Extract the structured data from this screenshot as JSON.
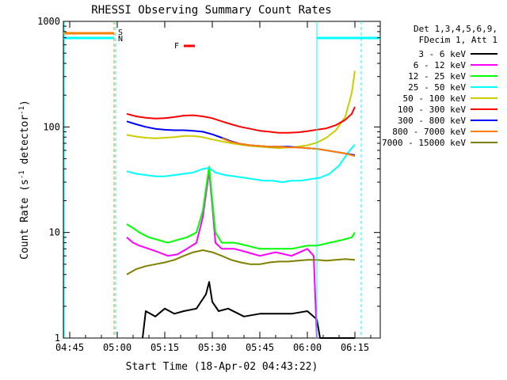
{
  "chart_data": {
    "type": "line",
    "title": "RHESSI Observing Summary Count Rates",
    "xlabel": "Start Time (18-Apr-02 04:43:22)",
    "ylabel_parts": [
      "Count Rate (s",
      "-1",
      " detector",
      "-1",
      ")"
    ],
    "y_scale": "log",
    "ylim": [
      1,
      1000
    ],
    "y_ticks": [
      {
        "value": 1,
        "label": "1"
      },
      {
        "value": 10,
        "label": "10"
      },
      {
        "value": 100,
        "label": "100"
      },
      {
        "value": 1000,
        "label": "1000"
      }
    ],
    "xlim_min": [
      -2,
      98
    ],
    "x_ticks": [
      {
        "value": 0,
        "label": "04:45"
      },
      {
        "value": 15,
        "label": "05:00"
      },
      {
        "value": 30,
        "label": "05:15"
      },
      {
        "value": 45,
        "label": "05:30"
      },
      {
        "value": 60,
        "label": "05:45"
      },
      {
        "value": 75,
        "label": "06:00"
      },
      {
        "value": 90,
        "label": "06:15"
      }
    ],
    "legend_header": [
      "Det 1,3,4,5,6,9,",
      "FDecim 1, Att 1"
    ],
    "legend_placement": "right",
    "flag_labels": {
      "s": "S",
      "n": "N",
      "f": "F"
    },
    "series": [
      {
        "name": "3 - 6 keV",
        "color": "#000000",
        "values": [
          [
            23,
            1
          ],
          [
            24,
            1.8
          ],
          [
            27,
            1.6
          ],
          [
            30,
            1.9
          ],
          [
            33,
            1.7
          ],
          [
            36,
            1.8
          ],
          [
            40,
            1.9
          ],
          [
            43,
            2.6
          ],
          [
            44,
            3.4
          ],
          [
            45,
            2.2
          ],
          [
            47,
            1.8
          ],
          [
            50,
            1.9
          ],
          [
            55,
            1.6
          ],
          [
            60,
            1.7
          ],
          [
            70,
            1.7
          ],
          [
            75,
            1.8
          ],
          [
            78,
            1.5
          ],
          [
            79,
            1
          ],
          [
            85,
            1
          ],
          [
            90,
            1
          ]
        ]
      },
      {
        "name": "6 - 12 keV",
        "color": "#ff00ff",
        "values": [
          [
            18,
            9
          ],
          [
            20,
            8
          ],
          [
            22,
            7.5
          ],
          [
            25,
            7
          ],
          [
            28,
            6.5
          ],
          [
            31,
            6
          ],
          [
            34,
            6.2
          ],
          [
            37,
            7
          ],
          [
            40,
            8
          ],
          [
            42,
            14
          ],
          [
            44,
            38
          ],
          [
            45,
            18
          ],
          [
            46,
            8
          ],
          [
            48,
            7
          ],
          [
            52,
            7
          ],
          [
            56,
            6.5
          ],
          [
            60,
            6
          ],
          [
            65,
            6.5
          ],
          [
            70,
            6
          ],
          [
            75,
            7
          ],
          [
            77,
            6
          ],
          [
            78,
            1
          ]
        ]
      },
      {
        "name": "12 - 25 keV",
        "color": "#00ff00",
        "values": [
          [
            18,
            12
          ],
          [
            20,
            11
          ],
          [
            22,
            10
          ],
          [
            25,
            9
          ],
          [
            28,
            8.5
          ],
          [
            31,
            8
          ],
          [
            34,
            8.5
          ],
          [
            37,
            9
          ],
          [
            40,
            10
          ],
          [
            42,
            16
          ],
          [
            44,
            42
          ],
          [
            45,
            20
          ],
          [
            46,
            10
          ],
          [
            48,
            8
          ],
          [
            52,
            8
          ],
          [
            56,
            7.5
          ],
          [
            60,
            7
          ],
          [
            65,
            7
          ],
          [
            70,
            7
          ],
          [
            75,
            7.5
          ],
          [
            78,
            7.5
          ],
          [
            82,
            8
          ],
          [
            86,
            8.5
          ],
          [
            89,
            9
          ],
          [
            90,
            10
          ]
        ]
      },
      {
        "name": "25 - 50 keV",
        "color": "#00ffff",
        "values": [
          [
            18,
            38
          ],
          [
            21,
            36
          ],
          [
            24,
            35
          ],
          [
            27,
            34
          ],
          [
            30,
            34
          ],
          [
            33,
            35
          ],
          [
            36,
            36
          ],
          [
            39,
            37
          ],
          [
            42,
            40
          ],
          [
            44,
            41
          ],
          [
            46,
            37
          ],
          [
            49,
            35
          ],
          [
            52,
            34
          ],
          [
            55,
            33
          ],
          [
            58,
            32
          ],
          [
            61,
            31
          ],
          [
            64,
            31
          ],
          [
            67,
            30
          ],
          [
            70,
            31
          ],
          [
            73,
            31
          ],
          [
            76,
            32
          ],
          [
            79,
            33
          ],
          [
            82,
            36
          ],
          [
            85,
            43
          ],
          [
            88,
            58
          ],
          [
            90,
            68
          ]
        ]
      },
      {
        "name": "50 - 100 keV",
        "color": "#cccc00",
        "values": [
          [
            18,
            84
          ],
          [
            21,
            81
          ],
          [
            24,
            79
          ],
          [
            27,
            78
          ],
          [
            30,
            79
          ],
          [
            33,
            80
          ],
          [
            36,
            82
          ],
          [
            39,
            82
          ],
          [
            42,
            80
          ],
          [
            45,
            76
          ],
          [
            48,
            73
          ],
          [
            51,
            70
          ],
          [
            54,
            68
          ],
          [
            57,
            66
          ],
          [
            60,
            65
          ],
          [
            63,
            64
          ],
          [
            66,
            63
          ],
          [
            69,
            64
          ],
          [
            72,
            65
          ],
          [
            75,
            67
          ],
          [
            78,
            71
          ],
          [
            81,
            79
          ],
          [
            84,
            93
          ],
          [
            87,
            125
          ],
          [
            89,
            210
          ],
          [
            90,
            340
          ]
        ]
      },
      {
        "name": "100 - 300 keV",
        "color": "#ff0000",
        "values": [
          [
            18,
            133
          ],
          [
            21,
            126
          ],
          [
            24,
            122
          ],
          [
            27,
            120
          ],
          [
            30,
            121
          ],
          [
            33,
            124
          ],
          [
            36,
            128
          ],
          [
            39,
            129
          ],
          [
            42,
            126
          ],
          [
            45,
            121
          ],
          [
            48,
            113
          ],
          [
            51,
            106
          ],
          [
            54,
            100
          ],
          [
            57,
            96
          ],
          [
            60,
            92
          ],
          [
            63,
            90
          ],
          [
            66,
            88
          ],
          [
            69,
            88
          ],
          [
            72,
            89
          ],
          [
            75,
            91
          ],
          [
            78,
            94
          ],
          [
            81,
            97
          ],
          [
            84,
            104
          ],
          [
            87,
            117
          ],
          [
            89,
            133
          ],
          [
            90,
            155
          ]
        ]
      },
      {
        "name": "300 - 800 keV",
        "color": "#0000ff",
        "values": [
          [
            18,
            113
          ],
          [
            21,
            106
          ],
          [
            24,
            100
          ],
          [
            27,
            96
          ],
          [
            30,
            94
          ],
          [
            33,
            93
          ],
          [
            36,
            93
          ],
          [
            39,
            92
          ],
          [
            42,
            90
          ],
          [
            45,
            85
          ],
          [
            48,
            79
          ],
          [
            51,
            73
          ],
          [
            54,
            69
          ],
          [
            57,
            67
          ],
          [
            60,
            66
          ],
          [
            63,
            65
          ],
          [
            66,
            65
          ],
          [
            69,
            65
          ],
          [
            72,
            64
          ],
          [
            75,
            63
          ],
          [
            78,
            62
          ],
          [
            81,
            60
          ],
          [
            84,
            58
          ],
          [
            87,
            56
          ],
          [
            90,
            54
          ]
        ]
      },
      {
        "name": "800 - 7000 keV",
        "color": "#ff8000",
        "values": [
          [
            48,
            78
          ],
          [
            51,
            72
          ],
          [
            54,
            69
          ],
          [
            57,
            67
          ],
          [
            60,
            66
          ],
          [
            63,
            65
          ],
          [
            66,
            65
          ],
          [
            69,
            64
          ],
          [
            72,
            64
          ],
          [
            75,
            63
          ],
          [
            78,
            62
          ],
          [
            81,
            60
          ],
          [
            84,
            58
          ],
          [
            87,
            56
          ],
          [
            90,
            53
          ]
        ]
      },
      {
        "name": "7000 - 15000 keV",
        "color": "#808000",
        "values": [
          [
            18,
            4
          ],
          [
            21,
            4.5
          ],
          [
            24,
            4.8
          ],
          [
            27,
            5
          ],
          [
            30,
            5.2
          ],
          [
            33,
            5.5
          ],
          [
            36,
            6
          ],
          [
            39,
            6.5
          ],
          [
            42,
            6.8
          ],
          [
            45,
            6.5
          ],
          [
            48,
            6
          ],
          [
            51,
            5.5
          ],
          [
            54,
            5.2
          ],
          [
            57,
            5
          ],
          [
            60,
            5
          ],
          [
            63,
            5.2
          ],
          [
            66,
            5.3
          ],
          [
            69,
            5.3
          ],
          [
            72,
            5.4
          ],
          [
            75,
            5.5
          ],
          [
            78,
            5.5
          ],
          [
            81,
            5.4
          ],
          [
            84,
            5.5
          ],
          [
            87,
            5.6
          ],
          [
            90,
            5.5
          ]
        ]
      }
    ]
  }
}
